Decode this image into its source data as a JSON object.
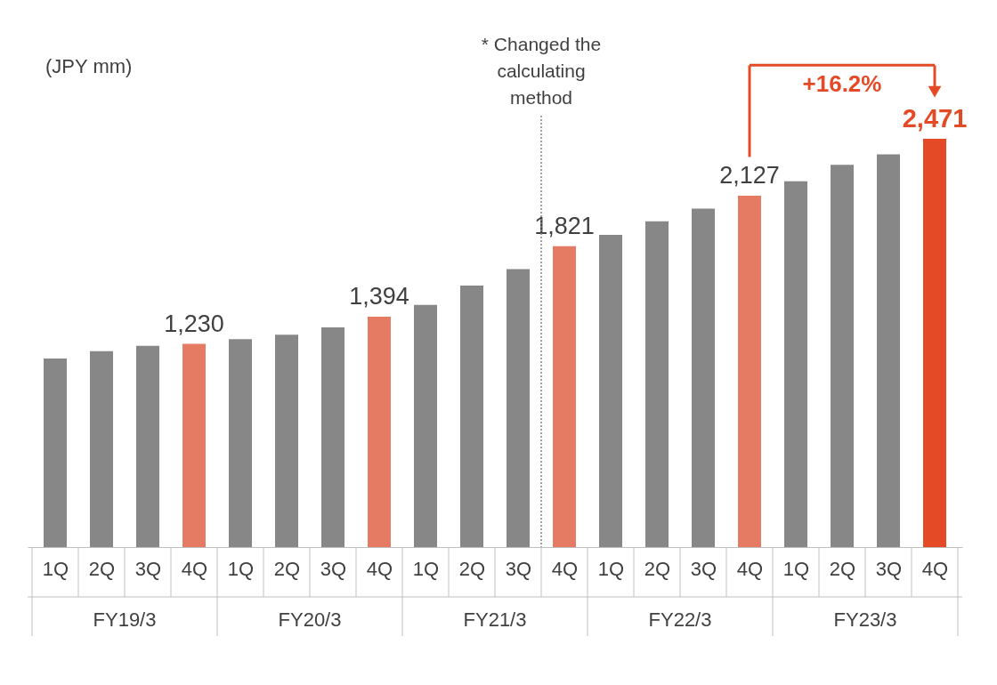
{
  "chart_data": {
    "type": "bar",
    "categories": [
      "1Q",
      "2Q",
      "3Q",
      "4Q",
      "1Q",
      "2Q",
      "3Q",
      "4Q",
      "1Q",
      "2Q",
      "3Q",
      "4Q",
      "1Q",
      "2Q",
      "3Q",
      "4Q",
      "1Q",
      "2Q",
      "3Q",
      "4Q"
    ],
    "values": [
      1141,
      1186,
      1218,
      1230,
      1258,
      1285,
      1330,
      1394,
      1466,
      1583,
      1682,
      1821,
      1890,
      1971,
      2048,
      2127,
      2214,
      2314,
      2377,
      2471
    ],
    "colors": [
      "#878787",
      "#878787",
      "#878787",
      "#e57b63",
      "#878787",
      "#878787",
      "#878787",
      "#e57b63",
      "#878787",
      "#878787",
      "#878787",
      "#e57b63",
      "#878787",
      "#878787",
      "#878787",
      "#e57b63",
      "#878787",
      "#878787",
      "#878787",
      "#e54a26"
    ],
    "value_labels": [
      null,
      null,
      null,
      "1,230",
      null,
      null,
      null,
      "1,394",
      null,
      null,
      null,
      "1,821",
      null,
      null,
      null,
      "2,127",
      null,
      null,
      null,
      "2,471"
    ],
    "annotations": [
      "(JPY mm)",
      "FY19/3",
      "FY20/3",
      "FY21/3",
      "FY22/3",
      "FY23/3",
      "+16.2%",
      "* Changed the calculating method"
    ],
    "grid": false
  }
}
